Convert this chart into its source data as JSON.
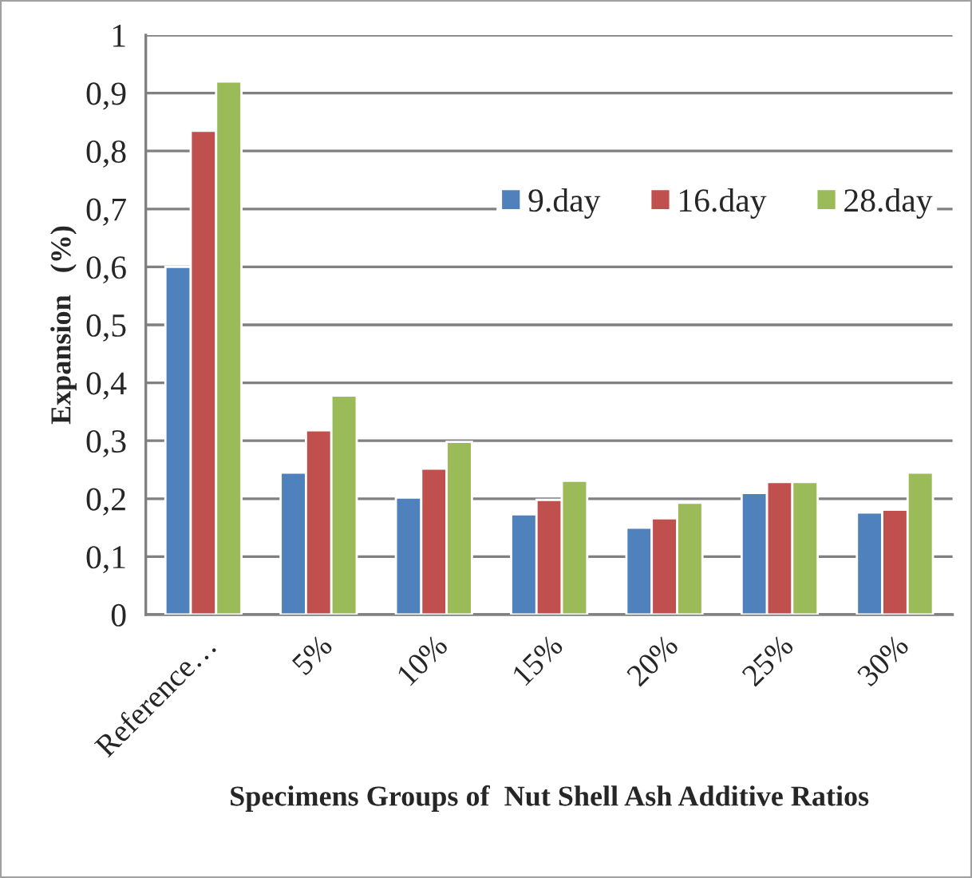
{
  "chart_data": {
    "type": "bar",
    "xlabel": "Specimens Groups of  Nut Shell Ash Additive Ratios",
    "ylabel": "Expansion   (%)",
    "categories": [
      "Reference…",
      "5%",
      "10%",
      "15%",
      "20%",
      "25%",
      "30%"
    ],
    "series": [
      {
        "name": "9.day",
        "color": "#4f81bd",
        "values": [
          0.6,
          0.245,
          0.202,
          0.173,
          0.15,
          0.21,
          0.176
        ]
      },
      {
        "name": "16.day",
        "color": "#c0504d",
        "values": [
          0.835,
          0.318,
          0.252,
          0.198,
          0.166,
          0.229,
          0.181
        ]
      },
      {
        "name": "28.day",
        "color": "#9bbb59",
        "values": [
          0.92,
          0.378,
          0.298,
          0.231,
          0.193,
          0.229,
          0.245
        ]
      }
    ],
    "ylim": [
      0,
      1
    ],
    "yticks": [
      0,
      {
        "value": 0.1,
        "label": "0,1"
      },
      {
        "value": 0.2,
        "label": "0,2"
      },
      {
        "value": 0.3,
        "label": "0,3"
      },
      {
        "value": 0.4,
        "label": "0,4"
      },
      {
        "value": 0.5,
        "label": "0,5"
      },
      {
        "value": 0.6,
        "label": "0,6"
      },
      {
        "value": 0.7,
        "label": "0,7"
      },
      {
        "value": 0.8,
        "label": "0,8"
      },
      {
        "value": 0.9,
        "label": "0,9"
      },
      1
    ],
    "grid": "y",
    "legend": "top right"
  }
}
